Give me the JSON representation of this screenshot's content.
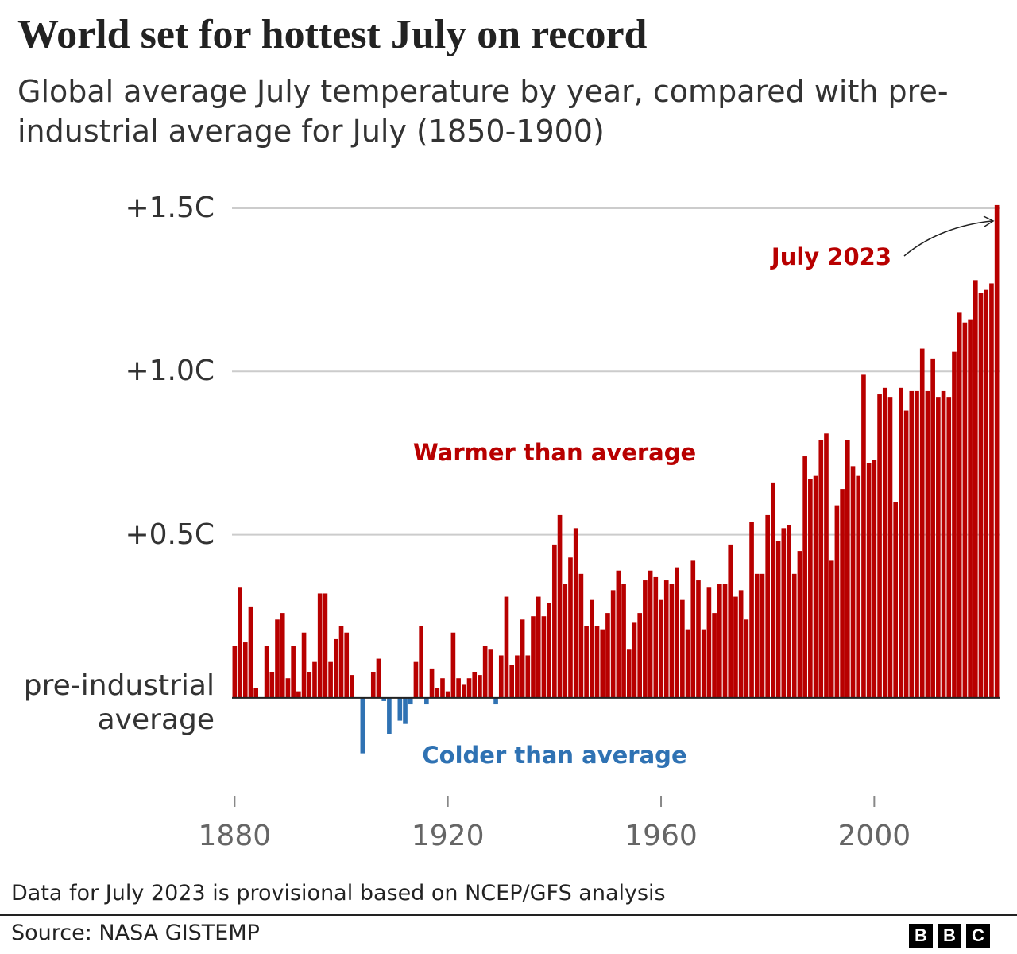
{
  "chart_data": {
    "type": "bar",
    "title": "World set for hottest July on record",
    "subtitle": "Global average July temperature by year, compared with pre-industrial average for July (1850-1900)",
    "annotations": {
      "warmer": "Warmer than average",
      "colder": "Colder than average",
      "highlight": "July 2023"
    },
    "note": "Data for July 2023 is provisional based on NCEP/GFS analysis",
    "source": "Source: NASA GISTEMP",
    "logo": [
      "B",
      "B",
      "C"
    ],
    "color": "#b80000",
    "negative_color": "#2f72b3",
    "x": [
      1880,
      1881,
      1882,
      1883,
      1884,
      1885,
      1886,
      1887,
      1888,
      1889,
      1890,
      1891,
      1892,
      1893,
      1894,
      1895,
      1896,
      1897,
      1898,
      1899,
      1900,
      1901,
      1902,
      1903,
      1904,
      1905,
      1906,
      1907,
      1908,
      1909,
      1910,
      1911,
      1912,
      1913,
      1914,
      1915,
      1916,
      1917,
      1918,
      1919,
      1920,
      1921,
      1922,
      1923,
      1924,
      1925,
      1926,
      1927,
      1928,
      1929,
      1930,
      1931,
      1932,
      1933,
      1934,
      1935,
      1936,
      1937,
      1938,
      1939,
      1940,
      1941,
      1942,
      1943,
      1944,
      1945,
      1946,
      1947,
      1948,
      1949,
      1950,
      1951,
      1952,
      1953,
      1954,
      1955,
      1956,
      1957,
      1958,
      1959,
      1960,
      1961,
      1962,
      1963,
      1964,
      1965,
      1966,
      1967,
      1968,
      1969,
      1970,
      1971,
      1972,
      1973,
      1974,
      1975,
      1976,
      1977,
      1978,
      1979,
      1980,
      1981,
      1982,
      1983,
      1984,
      1985,
      1986,
      1987,
      1988,
      1989,
      1990,
      1991,
      1992,
      1993,
      1994,
      1995,
      1996,
      1997,
      1998,
      1999,
      2000,
      2001,
      2002,
      2003,
      2004,
      2005,
      2006,
      2007,
      2008,
      2009,
      2010,
      2011,
      2012,
      2013,
      2014,
      2015,
      2016,
      2017,
      2018,
      2019,
      2020,
      2021,
      2022,
      2023
    ],
    "values": [
      0.16,
      0.34,
      0.17,
      0.28,
      0.03,
      0.0,
      0.16,
      0.08,
      0.24,
      0.26,
      0.06,
      0.16,
      0.02,
      0.2,
      0.08,
      0.11,
      0.32,
      0.32,
      0.11,
      0.18,
      0.22,
      0.2,
      0.07,
      0.0,
      -0.17,
      0.0,
      0.08,
      0.12,
      -0.01,
      -0.11,
      0.0,
      -0.07,
      -0.08,
      -0.02,
      0.11,
      0.22,
      -0.02,
      0.09,
      0.03,
      0.06,
      0.02,
      0.2,
      0.06,
      0.04,
      0.06,
      0.08,
      0.07,
      0.16,
      0.15,
      -0.02,
      0.13,
      0.31,
      0.1,
      0.13,
      0.24,
      0.13,
      0.25,
      0.31,
      0.25,
      0.29,
      0.47,
      0.56,
      0.35,
      0.43,
      0.52,
      0.38,
      0.22,
      0.3,
      0.22,
      0.21,
      0.26,
      0.33,
      0.39,
      0.35,
      0.15,
      0.23,
      0.26,
      0.36,
      0.39,
      0.37,
      0.3,
      0.36,
      0.35,
      0.4,
      0.3,
      0.21,
      0.42,
      0.36,
      0.21,
      0.34,
      0.26,
      0.35,
      0.35,
      0.47,
      0.31,
      0.33,
      0.24,
      0.54,
      0.38,
      0.38,
      0.56,
      0.66,
      0.48,
      0.52,
      0.53,
      0.38,
      0.45,
      0.74,
      0.67,
      0.68,
      0.79,
      0.81,
      0.42,
      0.59,
      0.64,
      0.79,
      0.71,
      0.68,
      0.99,
      0.72,
      0.73,
      0.93,
      0.95,
      0.92,
      0.6,
      0.95,
      0.88,
      0.94,
      0.94,
      1.07,
      0.94,
      1.04,
      0.92,
      0.94,
      0.92,
      1.06,
      1.18,
      1.15,
      1.16,
      1.28,
      1.24,
      1.25,
      1.27,
      1.51
    ],
    "xlim": [
      1879.5,
      2023.5
    ],
    "xticks": [
      1880,
      1920,
      1960,
      2000
    ],
    "ylim": [
      -0.3,
      1.55
    ],
    "yticks": [
      {
        "value": 0,
        "label": "pre-industrial average"
      },
      {
        "value": 0.5,
        "label": "+0.5C"
      },
      {
        "value": 1,
        "label": "+1.0C"
      },
      {
        "value": 1.5,
        "label": "+1.5C"
      }
    ],
    "grid": true
  }
}
